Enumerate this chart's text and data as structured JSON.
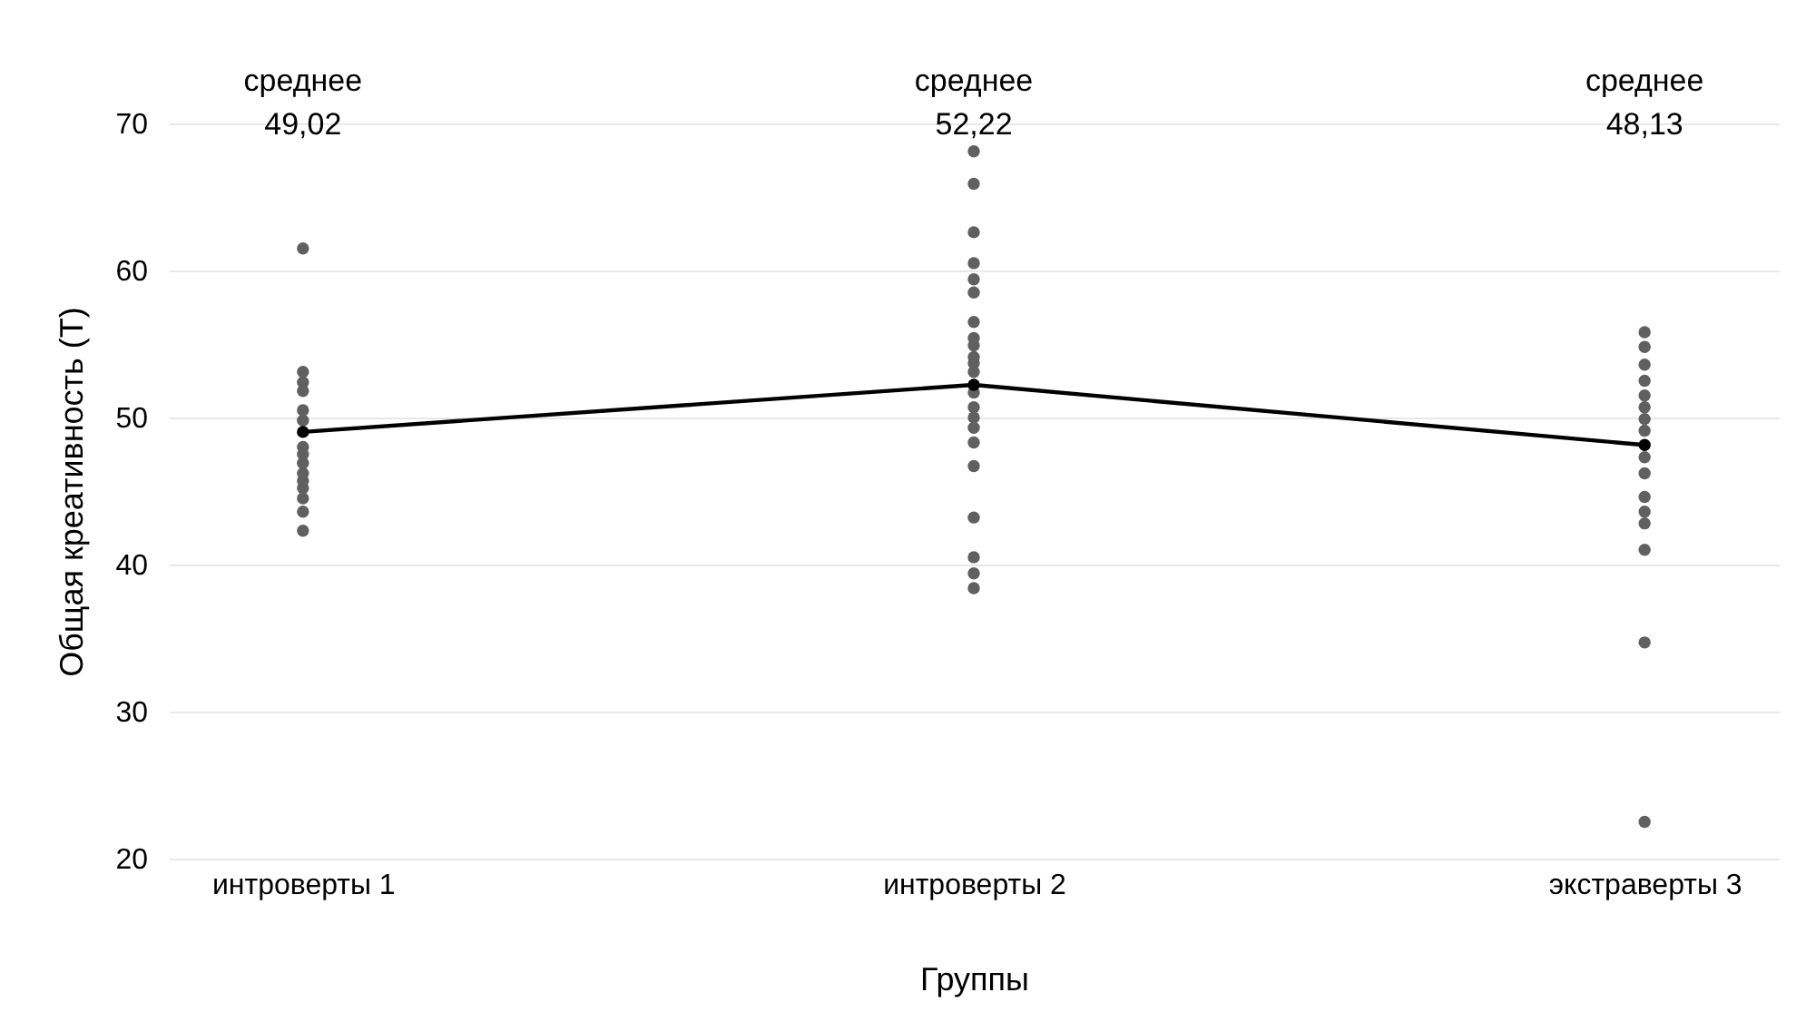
{
  "chart_data": {
    "type": "scatter",
    "xlabel": "Группы",
    "ylabel": "Общая креативность (T)",
    "annotations": [
      "среднее\n49,02",
      "среднее\n52,22",
      "среднее\n48,13"
    ],
    "categories": [
      "интроверты 1",
      "интроверты 2",
      "экстраверты 3"
    ],
    "ylim": [
      20,
      70
    ],
    "yticks": [
      20,
      30,
      40,
      50,
      60,
      70
    ],
    "grid": "y",
    "marker": "circle",
    "series": [
      {
        "color": "#606060",
        "x": [
          "интроверты 1",
          "интроверты 1",
          "интроверты 1",
          "интроверты 1",
          "интроверты 1",
          "интроверты 1",
          "интроверты 1",
          "интроверты 1",
          "интроверты 1",
          "интроверты 1",
          "интроверты 1",
          "интроверты 1",
          "интроверты 1",
          "интроверты 1",
          "интроверты 1",
          "интроверты 2",
          "интроверты 2",
          "интроверты 2",
          "интроверты 2",
          "интроверты 2",
          "интроверты 2",
          "интроверты 2",
          "интроверты 2",
          "интроверты 2",
          "интроверты 2",
          "интроверты 2",
          "интроверты 2",
          "интроверты 2",
          "интроверты 2",
          "интроверты 2",
          "интроверты 2",
          "интроверты 2",
          "интроверты 2",
          "интроверты 2",
          "интроверты 2",
          "интроверты 2",
          "интроверты 2",
          "экстраверты 3",
          "экстраверты 3",
          "экстраверты 3",
          "экстраверты 3",
          "экстраверты 3",
          "экстраверты 3",
          "экстраверты 3",
          "экстраверты 3",
          "экстраверты 3",
          "экстраверты 3",
          "экстраверты 3",
          "экстраверты 3",
          "экстраверты 3",
          "экстраверты 3",
          "экстраверты 3",
          "экстраверты 3"
        ],
        "values": [
          61.5,
          53.1,
          51.8,
          52.4,
          50.5,
          49.8,
          48.0,
          47.5,
          46.9,
          46.2,
          45.2,
          45.7,
          44.5,
          43.6,
          42.3,
          68.1,
          65.9,
          62.6,
          60.5,
          59.4,
          58.5,
          56.5,
          55.4,
          54.9,
          54.1,
          53.7,
          53.1,
          51.7,
          50.7,
          50.0,
          49.3,
          48.3,
          46.7,
          43.2,
          40.5,
          39.4,
          38.4,
          55.8,
          54.8,
          53.6,
          52.5,
          51.5,
          50.7,
          49.9,
          49.1,
          47.3,
          46.2,
          44.6,
          43.6,
          42.8,
          41.0,
          34.7,
          22.5
        ]
      },
      {
        "type": "line",
        "color": "#000000",
        "values": [
          49.02,
          52.22,
          48.13
        ]
      }
    ]
  }
}
